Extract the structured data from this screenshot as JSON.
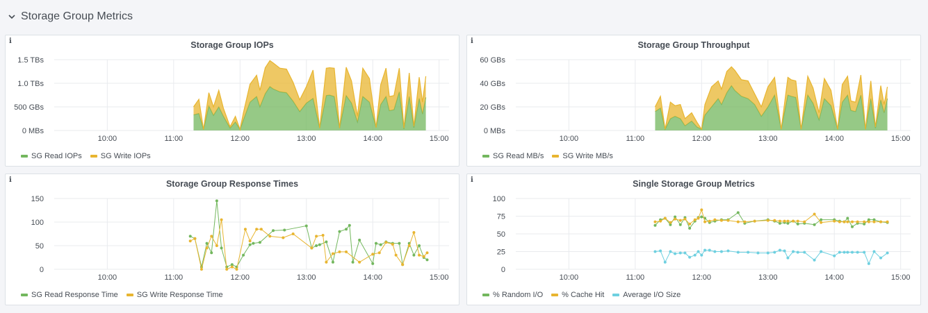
{
  "row": {
    "title": "Storage Group Metrics"
  },
  "info_glyph": "i",
  "colors": {
    "green": "#73b75e",
    "yellow": "#e8b530",
    "cyan": "#6ed0e0",
    "grid": "#e9ebee"
  },
  "panels": [
    {
      "title": "Storage Group IOPs",
      "legend": [
        "SG Read IOPs",
        "SG Write IOPs"
      ],
      "chart_data": {
        "type": "area",
        "stacked": true,
        "title": "Storage Group IOPs",
        "x_ticks": [
          "10:00",
          "11:00",
          "12:00",
          "13:00",
          "14:00",
          "15:00"
        ],
        "y_ticks": [
          "0 MBs",
          "500 GBs",
          "1.0 TBs",
          "1.5 TBs"
        ],
        "ylim": [
          0,
          1.5
        ],
        "xlim": [
          9.2,
          15.15
        ],
        "x": [
          11.3,
          11.38,
          11.45,
          11.53,
          11.6,
          11.68,
          11.75,
          11.85,
          11.93,
          12.0,
          12.05,
          12.15,
          12.25,
          12.3,
          12.38,
          12.45,
          12.5,
          12.6,
          12.7,
          12.8,
          12.9,
          13.0,
          13.1,
          13.2,
          13.3,
          13.35,
          13.42,
          13.5,
          13.6,
          13.68,
          13.77,
          13.85,
          13.95,
          14.05,
          14.12,
          14.2,
          14.25,
          14.32,
          14.4,
          14.47,
          14.55,
          14.62,
          14.7,
          14.75,
          14.8
        ],
        "series": [
          {
            "name": "SG Read IOPs",
            "values": [
              0.33,
              0.36,
              0.02,
              0.52,
              0.32,
              0.5,
              0.3,
              0.05,
              0.18,
              0.02,
              0.22,
              0.6,
              0.72,
              0.5,
              0.78,
              0.93,
              0.88,
              0.82,
              0.8,
              0.62,
              0.4,
              0.58,
              0.68,
              0.05,
              0.74,
              0.75,
              0.72,
              0.05,
              0.74,
              0.58,
              0.18,
              0.72,
              0.6,
              0.06,
              0.55,
              0.72,
              0.42,
              0.44,
              0.82,
              0.03,
              0.72,
              0.06,
              0.68,
              0.35,
              0.7
            ]
          },
          {
            "name": "SG Write IOPs",
            "values": [
              0.17,
              0.3,
              0.0,
              0.28,
              0.18,
              0.35,
              0.17,
              0.03,
              0.12,
              0.0,
              0.15,
              0.38,
              0.45,
              0.35,
              0.55,
              0.55,
              0.55,
              0.5,
              0.5,
              0.4,
              0.25,
              0.35,
              0.6,
              0.0,
              0.58,
              0.58,
              0.6,
              0.0,
              0.6,
              0.47,
              0.12,
              0.6,
              0.5,
              0.0,
              0.42,
              0.6,
              0.3,
              0.3,
              0.5,
              0.02,
              0.5,
              0.03,
              0.45,
              0.25,
              0.45
            ]
          }
        ]
      }
    },
    {
      "title": "Storage Group Throughput",
      "legend": [
        "SG Read MB/s",
        "SG Write MB/s"
      ],
      "chart_data": {
        "type": "area",
        "stacked": true,
        "title": "Storage Group Throughput",
        "x_ticks": [
          "10:00",
          "11:00",
          "12:00",
          "13:00",
          "14:00",
          "15:00"
        ],
        "y_ticks": [
          "0 MBs",
          "20 GBs",
          "40 GBs",
          "60 GBs"
        ],
        "ylim": [
          0,
          60
        ],
        "xlim": [
          9.2,
          15.15
        ],
        "x": [
          11.3,
          11.38,
          11.45,
          11.53,
          11.6,
          11.68,
          11.75,
          11.85,
          11.93,
          12.0,
          12.05,
          12.15,
          12.25,
          12.3,
          12.38,
          12.45,
          12.5,
          12.6,
          12.7,
          12.8,
          12.9,
          13.0,
          13.1,
          13.2,
          13.3,
          13.35,
          13.42,
          13.5,
          13.6,
          13.68,
          13.77,
          13.85,
          13.95,
          14.05,
          14.12,
          14.2,
          14.25,
          14.32,
          14.4,
          14.47,
          14.55,
          14.62,
          14.7,
          14.75,
          14.8
        ],
        "series": [
          {
            "name": "SG Read MB/s",
            "values": [
              16,
              19,
              1,
              10,
              12,
              10,
              4,
              8,
              3,
              1,
              13,
              20,
              27,
              22,
              32,
              38,
              34,
              29,
              27,
              22,
              12,
              20,
              30,
              1,
              30,
              29,
              28,
              1,
              30,
              23,
              9,
              27,
              21,
              1,
              24,
              30,
              17,
              16,
              30,
              1,
              27,
              2,
              26,
              15,
              27
            ]
          },
          {
            "name": "SG Write MB/s",
            "values": [
              4,
              10,
              0,
              14,
              9,
              12,
              6,
              7,
              4,
              0,
              9,
              17,
              15,
              13,
              18,
              16,
              17,
              14,
              15,
              9,
              8,
              17,
              15,
              0,
              15,
              14,
              14,
              0,
              16,
              13,
              6,
              17,
              13,
              0,
              15,
              16,
              8,
              8,
              17,
              0,
              15,
              1,
              12,
              7,
              10
            ]
          }
        ]
      }
    },
    {
      "title": "Storage Group Response Times",
      "legend": [
        "SG Read Response Time",
        "SG Write Response Time"
      ],
      "chart_data": {
        "type": "line",
        "title": "Storage Group Response Times",
        "x_ticks": [
          "10:00",
          "11:00",
          "12:00",
          "13:00",
          "14:00",
          "15:00"
        ],
        "y_ticks": [
          "0",
          "50",
          "100",
          "150"
        ],
        "ylim": [
          0,
          150
        ],
        "xlim": [
          9.2,
          15.15
        ],
        "series": [
          {
            "name": "SG Read Response Time",
            "x": [
              11.25,
              11.32,
              11.42,
              11.5,
              11.57,
              11.65,
              11.72,
              11.8,
              11.88,
              11.95,
              12.05,
              12.15,
              12.2,
              12.3,
              12.5,
              12.67,
              13.0,
              13.08,
              13.15,
              13.2,
              13.3,
              13.4,
              13.5,
              13.6,
              13.65,
              13.7,
              13.8,
              14.0,
              14.05,
              14.12,
              14.2,
              14.3,
              14.4,
              14.45,
              14.55,
              14.62,
              14.7,
              14.77,
              14.82
            ],
            "values": [
              70,
              65,
              5,
              55,
              35,
              145,
              45,
              5,
              10,
              5,
              30,
              52,
              55,
              57,
              82,
              83,
              92,
              45,
              50,
              52,
              58,
              15,
              80,
              85,
              93,
              15,
              62,
              12,
              55,
              52,
              58,
              55,
              55,
              10,
              55,
              30,
              50,
              25,
              20
            ]
          },
          {
            "name": "SG Write Response Time",
            "x": [
              11.25,
              11.32,
              11.42,
              11.5,
              11.57,
              11.65,
              11.72,
              11.8,
              11.88,
              11.95,
              12.08,
              12.15,
              12.25,
              12.32,
              12.45,
              12.65,
              12.8,
              13.08,
              13.15,
              13.25,
              13.3,
              13.4,
              13.5,
              13.6,
              13.8,
              14.0,
              14.1,
              14.2,
              14.3,
              14.35,
              14.45,
              14.55,
              14.62,
              14.7,
              14.77,
              14.82
            ],
            "values": [
              60,
              65,
              0,
              45,
              70,
              50,
              105,
              0,
              5,
              0,
              85,
              60,
              85,
              85,
              70,
              67,
              75,
              45,
              70,
              72,
              15,
              33,
              37,
              37,
              15,
              32,
              35,
              57,
              53,
              30,
              10,
              50,
              78,
              30,
              27,
              35
            ]
          }
        ]
      }
    },
    {
      "title": "Single Storage Group Metrics",
      "legend": [
        "% Random I/O",
        "% Cache Hit",
        "Average I/O Size"
      ],
      "chart_data": {
        "type": "line",
        "title": "Single Storage Group Metrics",
        "x_ticks": [
          "10:00",
          "11:00",
          "12:00",
          "13:00",
          "14:00",
          "15:00"
        ],
        "y_ticks": [
          "0",
          "25",
          "50",
          "75",
          "100"
        ],
        "ylim": [
          0,
          100
        ],
        "xlim": [
          9.2,
          15.15
        ],
        "series": [
          {
            "name": "% Random I/O",
            "x": [
              11.3,
              11.38,
              11.45,
              11.53,
              11.6,
              11.68,
              11.75,
              11.82,
              11.9,
              11.95,
              12.0,
              12.05,
              12.12,
              12.2,
              12.3,
              12.4,
              12.55,
              12.65,
              12.8,
              13.0,
              13.1,
              13.18,
              13.25,
              13.3,
              13.38,
              13.45,
              13.55,
              13.7,
              13.8,
              14.0,
              14.08,
              14.15,
              14.2,
              14.27,
              14.35,
              14.45,
              14.52,
              14.6,
              14.7,
              14.8
            ],
            "values": [
              62,
              70,
              72,
              63,
              74,
              63,
              73,
              58,
              68,
              73,
              74,
              72,
              66,
              68,
              70,
              70,
              80,
              65,
              68,
              70,
              68,
              65,
              66,
              65,
              68,
              64,
              65,
              63,
              70,
              70,
              68,
              67,
              72,
              60,
              65,
              64,
              70,
              70,
              67,
              66
            ]
          },
          {
            "name": "% Cache Hit",
            "x": [
              11.3,
              11.38,
              11.45,
              11.53,
              11.6,
              11.68,
              11.75,
              11.82,
              11.9,
              11.95,
              12.0,
              12.05,
              12.12,
              12.2,
              12.3,
              12.4,
              12.55,
              12.65,
              12.8,
              13.0,
              13.1,
              13.18,
              13.25,
              13.3,
              13.38,
              13.45,
              13.55,
              13.7,
              13.8,
              14.0,
              14.08,
              14.15,
              14.2,
              14.27,
              14.35,
              14.45,
              14.52,
              14.6,
              14.7,
              14.8
            ],
            "values": [
              67,
              68,
              72,
              66,
              71,
              69,
              71,
              64,
              70,
              72,
              84,
              67,
              68,
              70,
              69,
              69,
              67,
              67,
              68,
              69,
              69,
              68,
              68,
              68,
              68,
              68,
              67,
              78,
              66,
              68,
              67,
              67,
              67,
              67,
              67,
              67,
              67,
              67,
              67,
              67
            ]
          },
          {
            "name": "Average I/O Size",
            "x": [
              11.3,
              11.38,
              11.45,
              11.53,
              11.6,
              11.68,
              11.75,
              11.82,
              11.9,
              11.95,
              12.0,
              12.05,
              12.12,
              12.2,
              12.3,
              12.4,
              12.55,
              12.7,
              12.85,
              13.0,
              13.1,
              13.18,
              13.25,
              13.3,
              13.38,
              13.45,
              13.55,
              13.7,
              13.8,
              14.0,
              14.08,
              14.15,
              14.2,
              14.27,
              14.35,
              14.45,
              14.52,
              14.6,
              14.7,
              14.8
            ],
            "values": [
              25,
              26,
              10,
              25,
              22,
              23,
              23,
              17,
              20,
              25,
              20,
              27,
              27,
              25,
              25,
              26,
              24,
              24,
              23,
              23,
              24,
              27,
              26,
              16,
              25,
              24,
              24,
              13,
              25,
              19,
              24,
              24,
              24,
              24,
              24,
              24,
              8,
              25,
              16,
              23
            ]
          }
        ]
      }
    }
  ]
}
